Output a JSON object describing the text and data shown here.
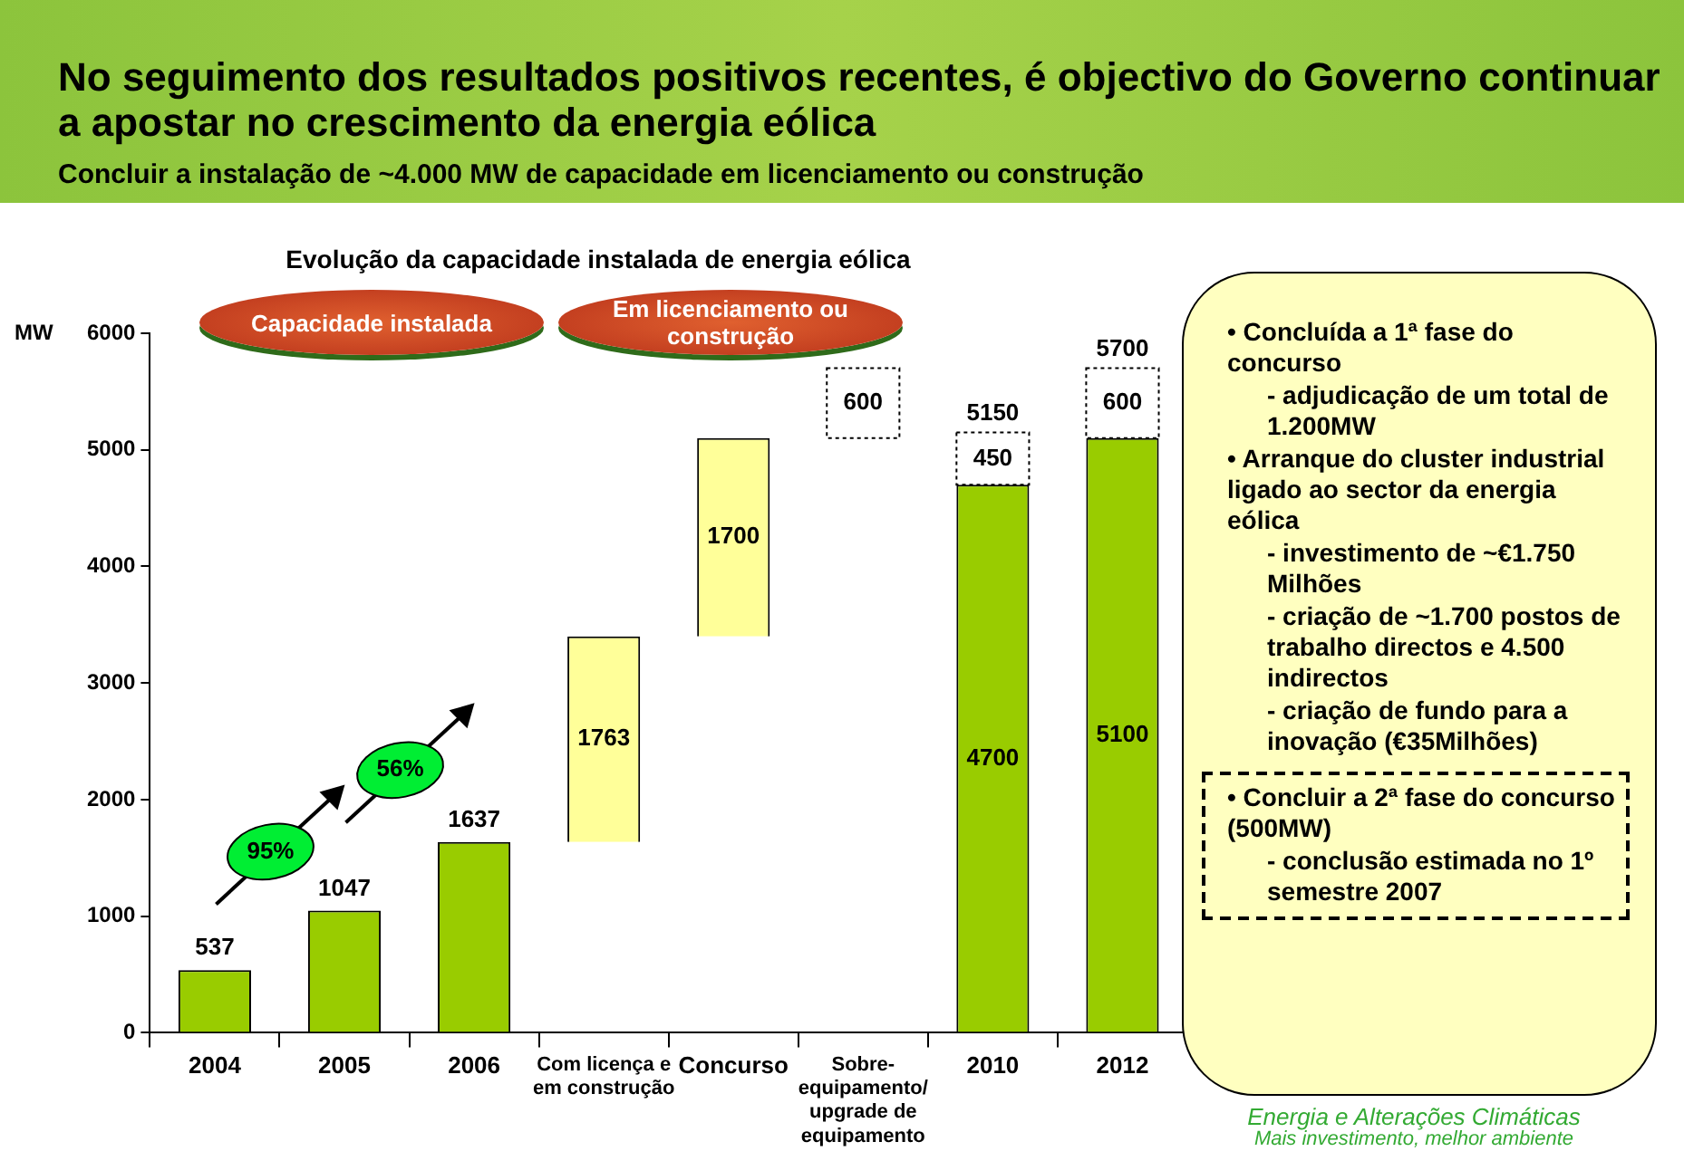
{
  "chart_data": {
    "type": "bar",
    "title": "No seguimento dos resultados positivos recentes, é objectivo do Governo continuar a apostar no crescimento da energia eólica",
    "subtitle": "Concluir a instalação de ~4.000 MW de capacidade em licenciamento ou construção",
    "ylabel": "MW",
    "categories": [
      "2004",
      "2005",
      "2006",
      "Com licença e em construção",
      "Concurso",
      "Sobre-equipamento/ upgrade de equipamento",
      "2010",
      "2012"
    ],
    "stacked": true,
    "series": [
      {
        "color": "#99cc00",
        "values": [
          537,
          1047,
          1637,
          null,
          null,
          null,
          4700,
          5100
        ]
      },
      {
        "color": "#ffff99",
        "values": [
          null,
          null,
          null,
          1763,
          1700,
          null,
          null,
          null
        ],
        "base": [
          null,
          null,
          null,
          1637,
          3400,
          null,
          null,
          null
        ]
      },
      {
        "color": "#ffffff",
        "line_style": "dotted",
        "values": [
          null,
          null,
          null,
          null,
          null,
          600,
          450,
          600
        ],
        "base": [
          null,
          null,
          null,
          null,
          null,
          5100,
          null,
          null
        ]
      }
    ],
    "data_labels": true,
    "totals": [
      null,
      null,
      null,
      null,
      null,
      null,
      "5150",
      "5700"
    ],
    "ylim": [
      0,
      6000
    ],
    "yticks": [
      0,
      1000,
      2000,
      3000,
      4000,
      5000,
      6000
    ],
    "grid": false,
    "legend": false,
    "annotations": [
      "Evolução da capacidade instalada de energia eólica",
      "Capacidade instalada",
      "Em licenciamento ou construção",
      "95%",
      "56%",
      "• Concluída a 1ª fase do concurso",
      "- adjudicação de um total de 1.200MW",
      "• Arranque do cluster industrial ligado ao sector da energia eólica",
      "- investimento de ~€1.750 Milhões",
      "- criação de ~1.700 postos de trabalho directos e 4.500 indirectos",
      "- criação de fundo para a inovação (€35Milhões)",
      "• Concluir a 2ª fase do concurso (500MW)",
      "- conclusão estimada no 1º semestre 2007",
      "Energia e Alterações Climáticas",
      "Mais investimento, melhor ambiente"
    ]
  }
}
